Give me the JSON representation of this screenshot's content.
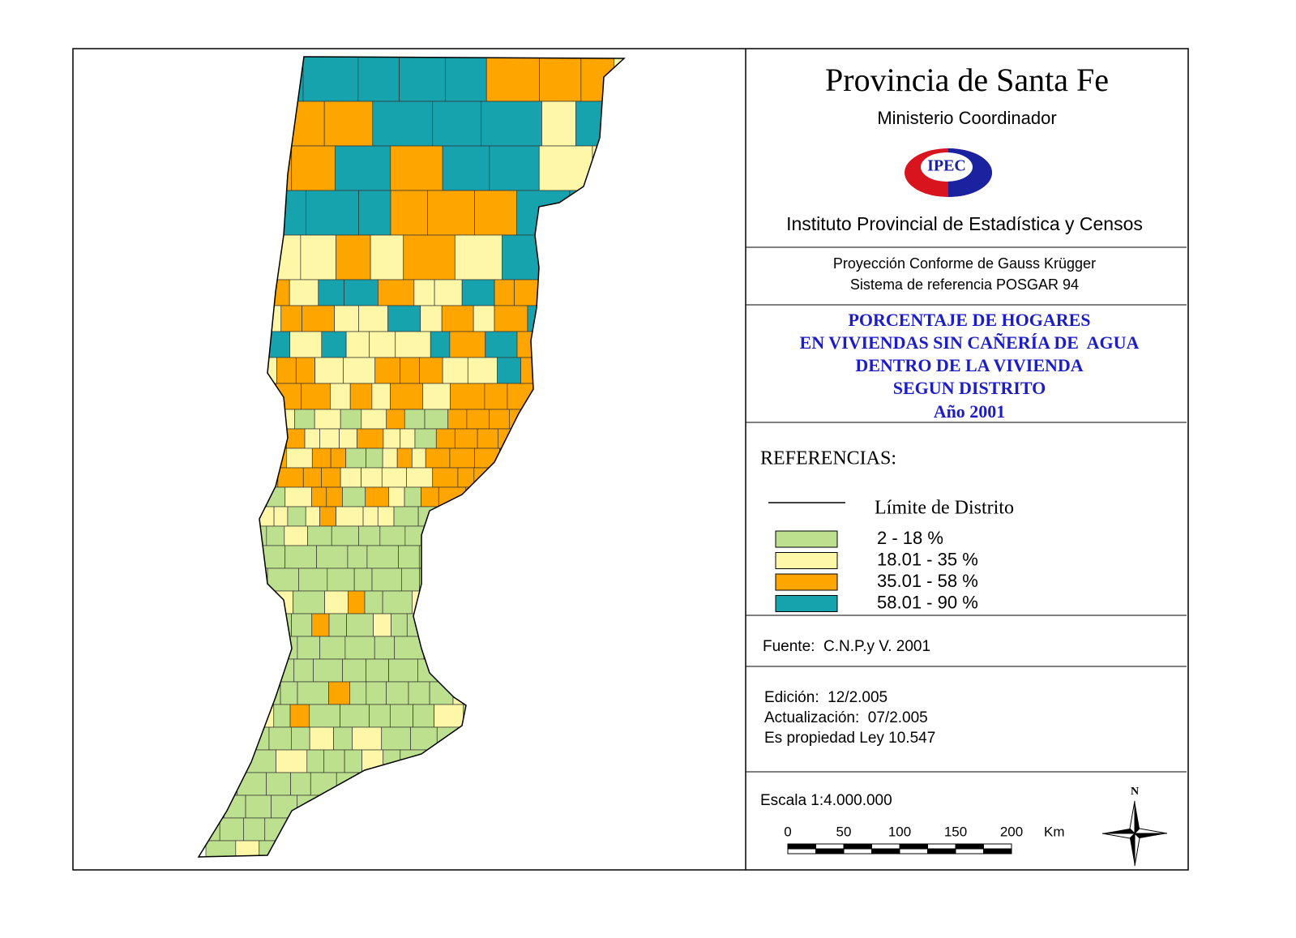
{
  "header": {
    "title": "Provincia de Santa Fe",
    "subtitle": "Ministerio Coordinador",
    "logo": "IPEC",
    "institute": "Instituto Provincial de Estadística y Censos"
  },
  "projection": [
    "Proyección Conforme de Gauss Krügger",
    "Sistema de referencia POSGAR 94"
  ],
  "map_title": [
    "PORCENTAJE DE HOGARES",
    "EN VIVIENDAS SIN CAÑERÍA DE  AGUA",
    "DENTRO DE LA VIVIENDA",
    "SEGUN DISTRITO",
    "Año 2001"
  ],
  "legend": {
    "heading": "REFERENCIAS:",
    "boundary": "Límite de Distrito",
    "items": [
      {
        "label": "2 - 18 %",
        "color": "#bde08f"
      },
      {
        "label": "18.01 - 35 %",
        "color": "#fff7a8"
      },
      {
        "label": "35.01 - 58 %",
        "color": "#ffa500"
      },
      {
        "label": "58.01 - 90 %",
        "color": "#16a3ad"
      }
    ]
  },
  "source": "Fuente:  C.N.P.y V. 2001",
  "edition": [
    "Edición:  12/2.005",
    "Actualización:  07/2.005",
    "Es propiedad Ley 10.547"
  ],
  "scale": {
    "label": "Escala 1:4.000.000",
    "ticks": [
      0,
      50,
      100,
      150,
      200
    ],
    "unit": "Km"
  },
  "north": "N"
}
